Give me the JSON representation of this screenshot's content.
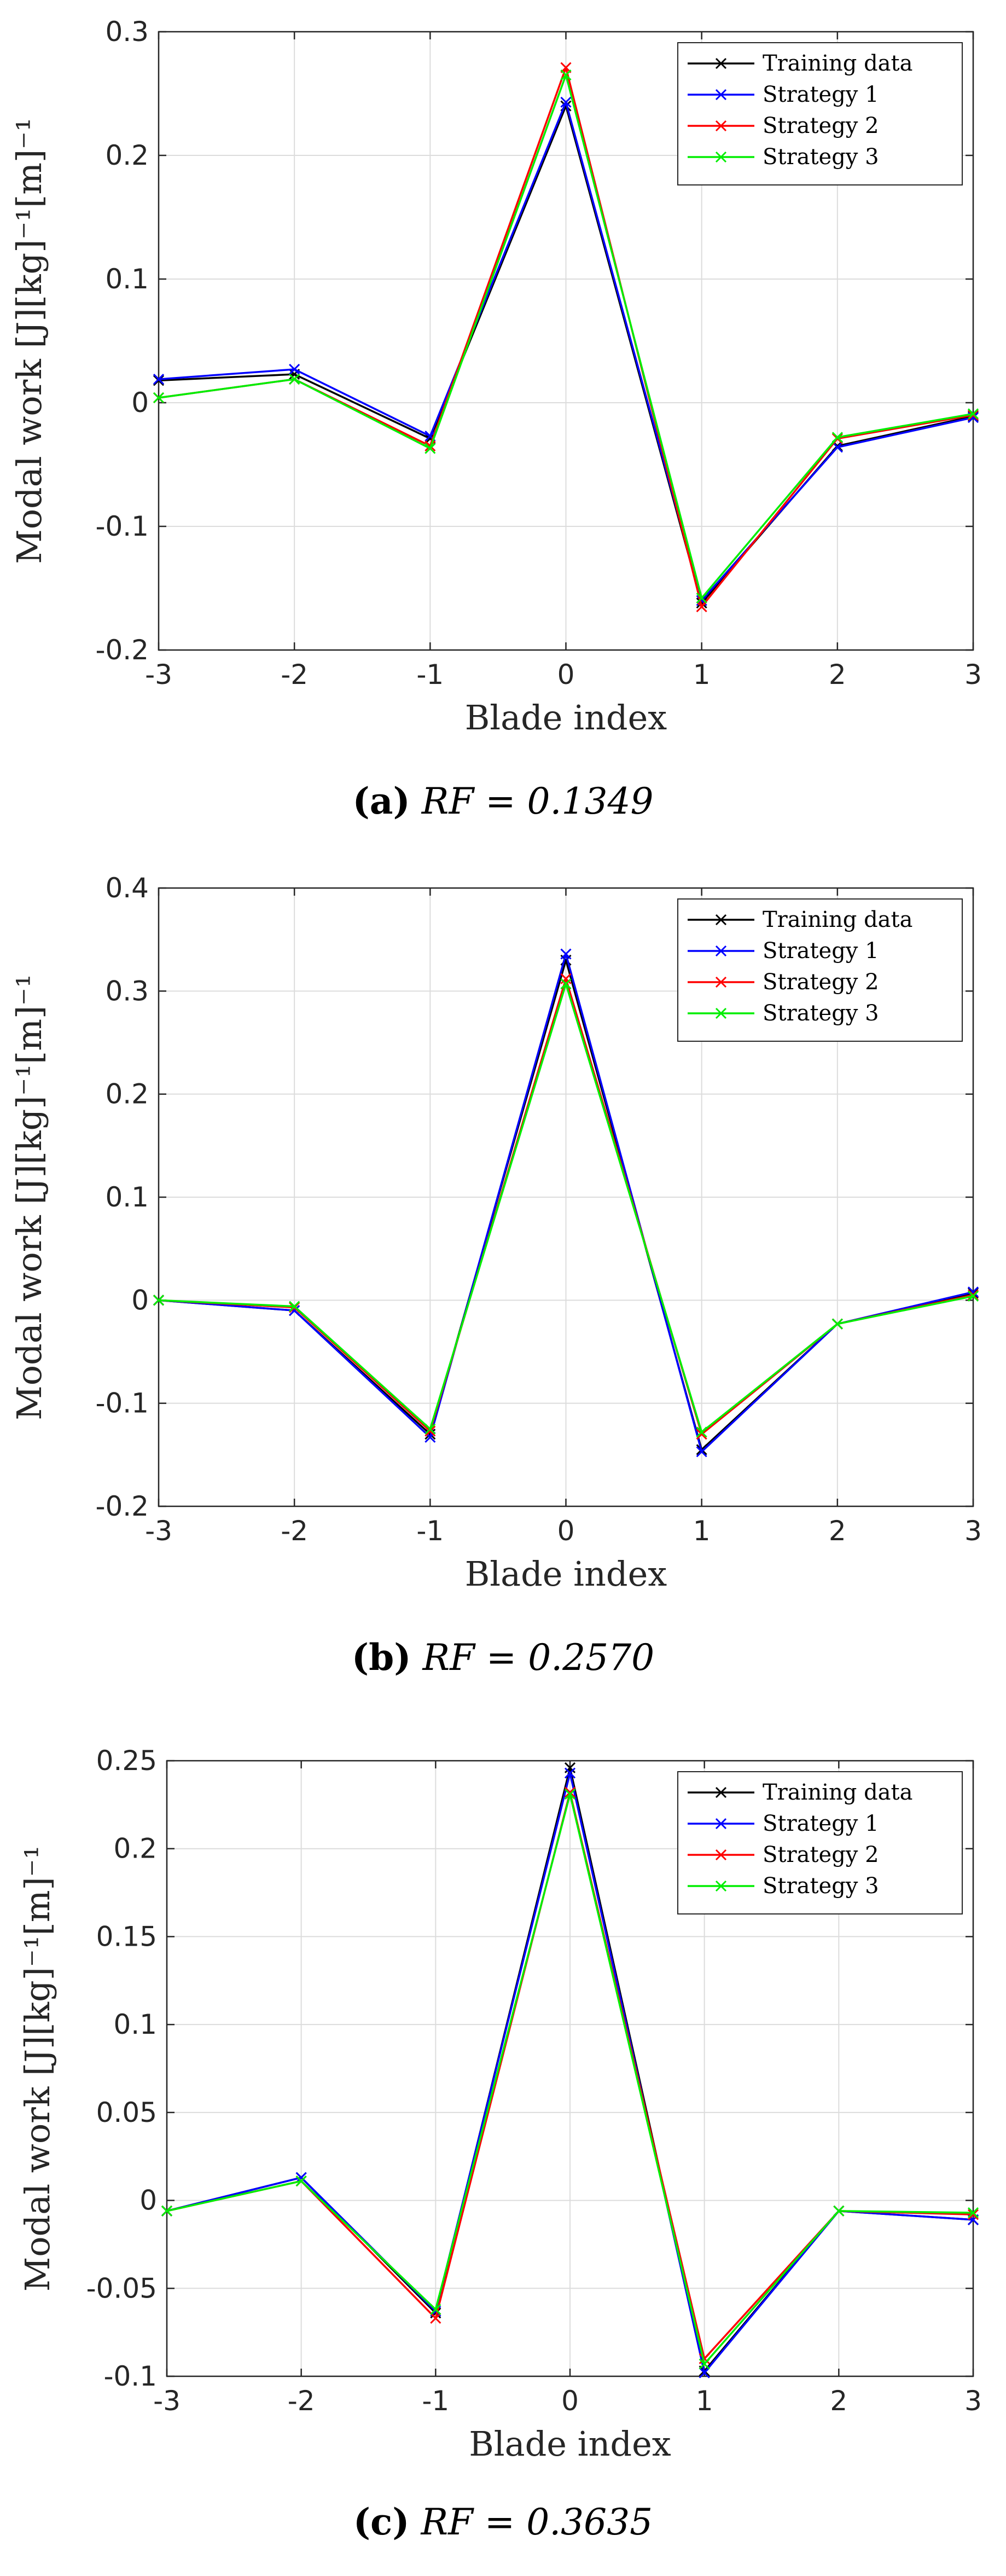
{
  "figure": {
    "colors": {
      "training": "#000000",
      "s1": "#0000ff",
      "s2": "#ff0000",
      "s3": "#00ee00",
      "grid": "#dcdcdc"
    },
    "captions": [
      {
        "letter": "(a)",
        "text": "RF = 0.1349"
      },
      {
        "letter": "(b)",
        "text": "RF = 0.2570"
      },
      {
        "letter": "(c)",
        "text": "RF = 0.3635"
      }
    ]
  },
  "chart_data": [
    {
      "type": "line",
      "title": "",
      "xlabel": "Blade index",
      "ylabel": "Modal work [J][kg]⁻¹[m]⁻¹",
      "x": [
        -3,
        -2,
        -1,
        0,
        1,
        2,
        3
      ],
      "xlim": [
        -3,
        3
      ],
      "ylim": [
        -0.2,
        0.3
      ],
      "xticks": [
        "-3",
        "-2",
        "-1",
        "0",
        "1",
        "2",
        "3"
      ],
      "yticks": [
        "-0.2",
        "-0.1",
        "0",
        "0.1",
        "0.2",
        "0.3"
      ],
      "ytick_values": [
        -0.2,
        -0.1,
        0,
        0.1,
        0.2,
        0.3
      ],
      "legend_position": "top-right",
      "grid": true,
      "series": [
        {
          "name": "Training data",
          "values": [
            0.018,
            0.023,
            -0.029,
            0.24,
            -0.162,
            -0.035,
            -0.011
          ]
        },
        {
          "name": "Strategy 1",
          "values": [
            0.019,
            0.027,
            -0.027,
            0.243,
            -0.16,
            -0.036,
            -0.012
          ]
        },
        {
          "name": "Strategy 2",
          "values": [
            0.004,
            0.019,
            -0.035,
            0.271,
            -0.165,
            -0.029,
            -0.01
          ]
        },
        {
          "name": "Strategy 3",
          "values": [
            0.004,
            0.019,
            -0.037,
            0.265,
            -0.158,
            -0.028,
            -0.009
          ]
        }
      ]
    },
    {
      "type": "line",
      "title": "",
      "xlabel": "Blade index",
      "ylabel": "Modal work [J][kg]⁻¹[m]⁻¹",
      "x": [
        -3,
        -2,
        -1,
        0,
        1,
        2,
        3
      ],
      "xlim": [
        -3,
        3
      ],
      "ylim": [
        -0.2,
        0.4
      ],
      "xticks": [
        "-3",
        "-2",
        "-1",
        "0",
        "1",
        "2",
        "3"
      ],
      "yticks": [
        "-0.2",
        "-0.1",
        "0",
        "0.1",
        "0.2",
        "0.3",
        "0.4"
      ],
      "ytick_values": [
        -0.2,
        -0.1,
        0,
        0.1,
        0.2,
        0.3,
        0.4
      ],
      "legend_position": "top-right",
      "grid": true,
      "series": [
        {
          "name": "Training data",
          "values": [
            0.0,
            -0.01,
            -0.13,
            0.33,
            -0.145,
            -0.023,
            0.007
          ]
        },
        {
          "name": "Strategy 1",
          "values": [
            0.0,
            -0.01,
            -0.133,
            0.336,
            -0.147,
            -0.023,
            0.008
          ]
        },
        {
          "name": "Strategy 2",
          "values": [
            0.0,
            -0.007,
            -0.127,
            0.312,
            -0.13,
            -0.023,
            0.005
          ]
        },
        {
          "name": "Strategy 3",
          "values": [
            0.0,
            -0.006,
            -0.125,
            0.307,
            -0.128,
            -0.023,
            0.004
          ]
        }
      ]
    },
    {
      "type": "line",
      "title": "",
      "xlabel": "Blade index",
      "ylabel": "Modal work [J][kg]⁻¹[m]⁻¹",
      "x": [
        -3,
        -2,
        -1,
        0,
        1,
        2,
        3
      ],
      "xlim": [
        -3,
        3
      ],
      "ylim": [
        -0.1,
        0.25
      ],
      "xticks": [
        "-3",
        "-2",
        "-1",
        "0",
        "1",
        "2",
        "3"
      ],
      "yticks": [
        "-0.1",
        "-0.05",
        "0",
        "0.05",
        "0.1",
        "0.15",
        "0.2",
        "0.25"
      ],
      "ytick_values": [
        -0.1,
        -0.05,
        0,
        0.05,
        0.1,
        0.15,
        0.2,
        0.25
      ],
      "legend_position": "top-right",
      "grid": true,
      "series": [
        {
          "name": "Training data",
          "values": [
            -0.006,
            0.013,
            -0.064,
            0.246,
            -0.097,
            -0.006,
            -0.011
          ]
        },
        {
          "name": "Strategy 1",
          "values": [
            -0.006,
            0.013,
            -0.063,
            0.243,
            -0.098,
            -0.006,
            -0.011
          ]
        },
        {
          "name": "Strategy 2",
          "values": [
            -0.006,
            0.011,
            -0.067,
            0.232,
            -0.09,
            -0.006,
            -0.008
          ]
        },
        {
          "name": "Strategy 3",
          "values": [
            -0.006,
            0.011,
            -0.062,
            0.231,
            -0.093,
            -0.006,
            -0.007
          ]
        }
      ]
    }
  ]
}
